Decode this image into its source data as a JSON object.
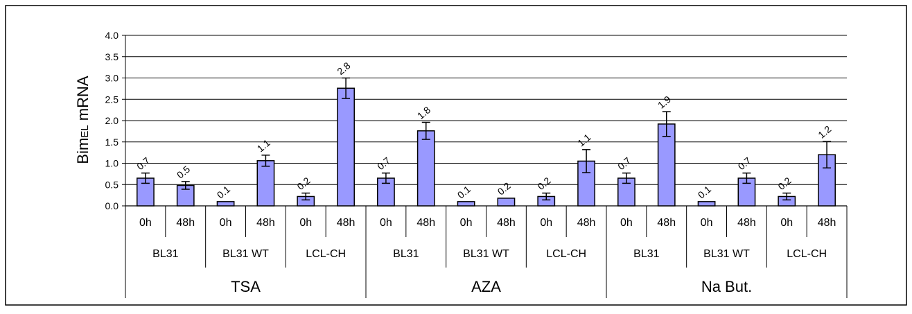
{
  "chart_data": {
    "type": "bar",
    "ylabel_main": "Bim",
    "ylabel_sub": "EL",
    "ylabel_rest": " mRNA",
    "ylim": [
      0,
      4.0
    ],
    "yticks": [
      "0.0",
      "0.5",
      "1.0",
      "1.5",
      "2.0",
      "2.5",
      "3.0",
      "3.5",
      "4.0"
    ],
    "grid": true,
    "bar_color": "#9999ff",
    "groups": [
      {
        "label": "TSA",
        "lines": [
          {
            "label": "BL31",
            "bars": [
              {
                "time": "0h",
                "value": 0.65,
                "error": 0.12,
                "data_label": "0.7"
              },
              {
                "time": "48h",
                "value": 0.48,
                "error": 0.09,
                "data_label": "0.5"
              }
            ]
          },
          {
            "label": "BL31 WT",
            "bars": [
              {
                "time": "0h",
                "value": 0.1,
                "error": 0.0,
                "data_label": "0.1"
              },
              {
                "time": "48h",
                "value": 1.06,
                "error": 0.13,
                "data_label": "1.1"
              }
            ]
          },
          {
            "label": "LCL-CH",
            "bars": [
              {
                "time": "0h",
                "value": 0.22,
                "error": 0.08,
                "data_label": "0.2"
              },
              {
                "time": "48h",
                "value": 2.76,
                "error": 0.24,
                "data_label": "2.8"
              }
            ]
          }
        ]
      },
      {
        "label": "AZA",
        "lines": [
          {
            "label": "BL31",
            "bars": [
              {
                "time": "0h",
                "value": 0.65,
                "error": 0.12,
                "data_label": "0.7"
              },
              {
                "time": "48h",
                "value": 1.76,
                "error": 0.2,
                "data_label": "1.8"
              }
            ]
          },
          {
            "label": "BL31 WT",
            "bars": [
              {
                "time": "0h",
                "value": 0.1,
                "error": 0.0,
                "data_label": "0.1"
              },
              {
                "time": "48h",
                "value": 0.18,
                "error": 0.0,
                "data_label": "0.2"
              }
            ]
          },
          {
            "label": "LCL-CH",
            "bars": [
              {
                "time": "0h",
                "value": 0.22,
                "error": 0.08,
                "data_label": "0.2"
              },
              {
                "time": "48h",
                "value": 1.05,
                "error": 0.27,
                "data_label": "1.1"
              }
            ]
          }
        ]
      },
      {
        "label": "Na But.",
        "lines": [
          {
            "label": "BL31",
            "bars": [
              {
                "time": "0h",
                "value": 0.65,
                "error": 0.12,
                "data_label": "0.7"
              },
              {
                "time": "48h",
                "value": 1.92,
                "error": 0.29,
                "data_label": "1.9"
              }
            ]
          },
          {
            "label": "BL31 WT",
            "bars": [
              {
                "time": "0h",
                "value": 0.1,
                "error": 0.0,
                "data_label": "0.1"
              },
              {
                "time": "48h",
                "value": 0.65,
                "error": 0.12,
                "data_label": "0.7"
              }
            ]
          },
          {
            "label": "LCL-CH",
            "bars": [
              {
                "time": "0h",
                "value": 0.22,
                "error": 0.08,
                "data_label": "0.2"
              },
              {
                "time": "48h",
                "value": 1.2,
                "error": 0.31,
                "data_label": "1.2"
              }
            ]
          }
        ]
      }
    ]
  }
}
